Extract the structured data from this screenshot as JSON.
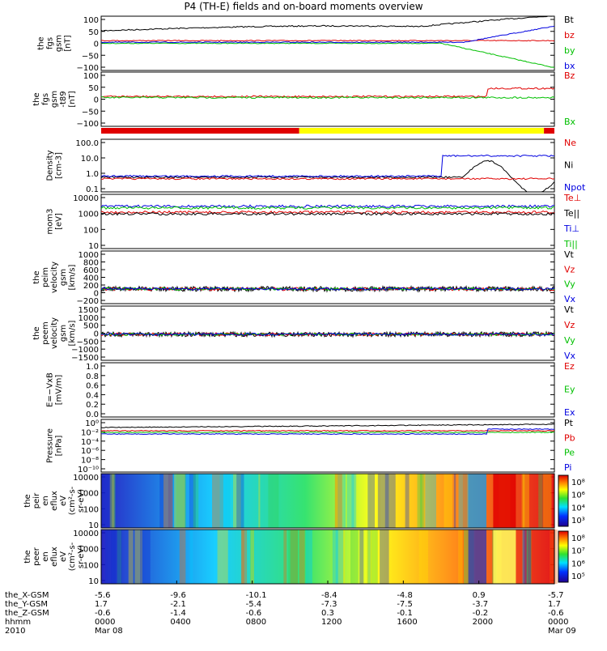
{
  "title": "P4 (TH-E) fields and on-board moments overview",
  "colors": {
    "black": "#000000",
    "red": "#e00000",
    "green": "#00c000",
    "blue": "#0000e0",
    "yellow": "#ffff00"
  },
  "chart_data": [
    {
      "type": "line",
      "ylabel": [
        "the",
        "fgs",
        "gsm",
        "[nT]"
      ],
      "yticks": [
        "100",
        "50",
        "0",
        "−50",
        "−100"
      ],
      "legend": [
        {
          "name": "Bt",
          "color": "#000000"
        },
        {
          "name": "bz",
          "color": "#e00000"
        },
        {
          "name": "by",
          "color": "#00c000"
        },
        {
          "name": "bx",
          "color": "#0000e0"
        }
      ]
    },
    {
      "type": "line",
      "ylabel": [
        "the",
        "fgs",
        "gsm",
        "-t89",
        "[nT]"
      ],
      "yticks": [
        "100",
        "50",
        "0",
        "−50",
        "−100"
      ],
      "legend": [
        {
          "name": "Bz",
          "color": "#e00000"
        },
        {
          "name": "Bx",
          "color": "#00c000"
        }
      ]
    },
    {
      "type": "line",
      "ylabel": [
        "Density",
        "[cm-3]"
      ],
      "yticks": [
        "100.0",
        "10.0",
        "1.0",
        "0.1"
      ],
      "legend": [
        {
          "name": "Ne",
          "color": "#e00000"
        },
        {
          "name": "Ni",
          "color": "#000000"
        },
        {
          "name": "Npot",
          "color": "#0000e0"
        }
      ]
    },
    {
      "type": "line",
      "ylabel": [
        "mom3",
        "[eV]"
      ],
      "yticks": [
        "10000",
        "1000",
        "100",
        "10"
      ],
      "legend": [
        {
          "name": "Te⊥",
          "color": "#e00000"
        },
        {
          "name": "Te||",
          "color": "#000000"
        },
        {
          "name": "Ti⊥",
          "color": "#0000e0"
        },
        {
          "name": "Ti||",
          "color": "#00c000"
        }
      ]
    },
    {
      "type": "line",
      "ylabel": [
        "the",
        "peim",
        "velocity",
        "gsm",
        "[km/s]"
      ],
      "yticks": [
        "1000",
        "800",
        "600",
        "400",
        "200",
        "0",
        "−200"
      ],
      "legend": [
        {
          "name": "Vt",
          "color": "#000000"
        },
        {
          "name": "Vz",
          "color": "#e00000"
        },
        {
          "name": "Vy",
          "color": "#00c000"
        },
        {
          "name": "Vx",
          "color": "#0000e0"
        }
      ]
    },
    {
      "type": "line",
      "ylabel": [
        "the",
        "peem",
        "velocity",
        "gsm",
        "[km/s]"
      ],
      "yticks": [
        "1500",
        "1000",
        "500",
        "0",
        "−500",
        "−1000",
        "−1500"
      ],
      "legend": [
        {
          "name": "Vt",
          "color": "#000000"
        },
        {
          "name": "Vz",
          "color": "#e00000"
        },
        {
          "name": "Vy",
          "color": "#00c000"
        },
        {
          "name": "Vx",
          "color": "#0000e0"
        }
      ]
    },
    {
      "type": "line",
      "ylabel": [
        "E=−VxB",
        "[mV/m]"
      ],
      "yticks": [
        "1.0",
        "0.8",
        "0.6",
        "0.4",
        "0.2",
        "0.0"
      ],
      "legend": [
        {
          "name": "Ez",
          "color": "#e00000"
        },
        {
          "name": "Ey",
          "color": "#00c000"
        },
        {
          "name": "Ex",
          "color": "#0000e0"
        }
      ]
    },
    {
      "type": "line",
      "ylabel": [
        "Pressure",
        "[nPa]"
      ],
      "yticks": [
        "10⁰",
        "10⁻²",
        "10⁻⁴",
        "10⁻⁶",
        "10⁻⁸",
        "10⁻¹⁰"
      ],
      "legend": [
        {
          "name": "Pt",
          "color": "#000000"
        },
        {
          "name": "Pb",
          "color": "#e00000"
        },
        {
          "name": "Pe",
          "color": "#00c000"
        },
        {
          "name": "Pi",
          "color": "#0000e0"
        }
      ]
    },
    {
      "type": "heatmap",
      "ylabel": [
        "the",
        "peir",
        "en",
        "eflux",
        "eV",
        "(cm²-s-",
        "sr-eV)"
      ],
      "yticks": [
        "10000",
        "1000",
        "100",
        "10"
      ],
      "colorbar_ticks": [
        "10⁸",
        "10⁶",
        "10⁴",
        "10³"
      ]
    },
    {
      "type": "heatmap",
      "ylabel": [
        "the",
        "peer",
        "en",
        "eflux",
        "eV",
        "(cm²-s-",
        "sr-eV)"
      ],
      "yticks": [
        "10000",
        "1000",
        "100",
        "10"
      ],
      "colorbar_ticks": [
        "10⁸",
        "10⁷",
        "10⁶",
        "10⁵"
      ]
    }
  ],
  "xaxis": {
    "row_labels": [
      "the_X-GSM",
      "the_Y-GSM",
      "the_Z-GSM",
      "hhmm",
      "2010"
    ],
    "columns": [
      [
        "-5.6",
        "1.7",
        "-0.6",
        "0000",
        "Mar 08"
      ],
      [
        "-9.6",
        "-2.1",
        "-1.4",
        "0400",
        ""
      ],
      [
        "-10.1",
        "-5.4",
        "-0.6",
        "0800",
        ""
      ],
      [
        "-8.4",
        "-7.3",
        "0.3",
        "1200",
        ""
      ],
      [
        "-4.8",
        "-7.5",
        "-0.1",
        "1600",
        ""
      ],
      [
        "0.9",
        "-3.7",
        "-0.2",
        "2000",
        ""
      ],
      [
        "-5.7",
        "1.7",
        "-0.6",
        "0000",
        "Mar 09"
      ]
    ]
  }
}
